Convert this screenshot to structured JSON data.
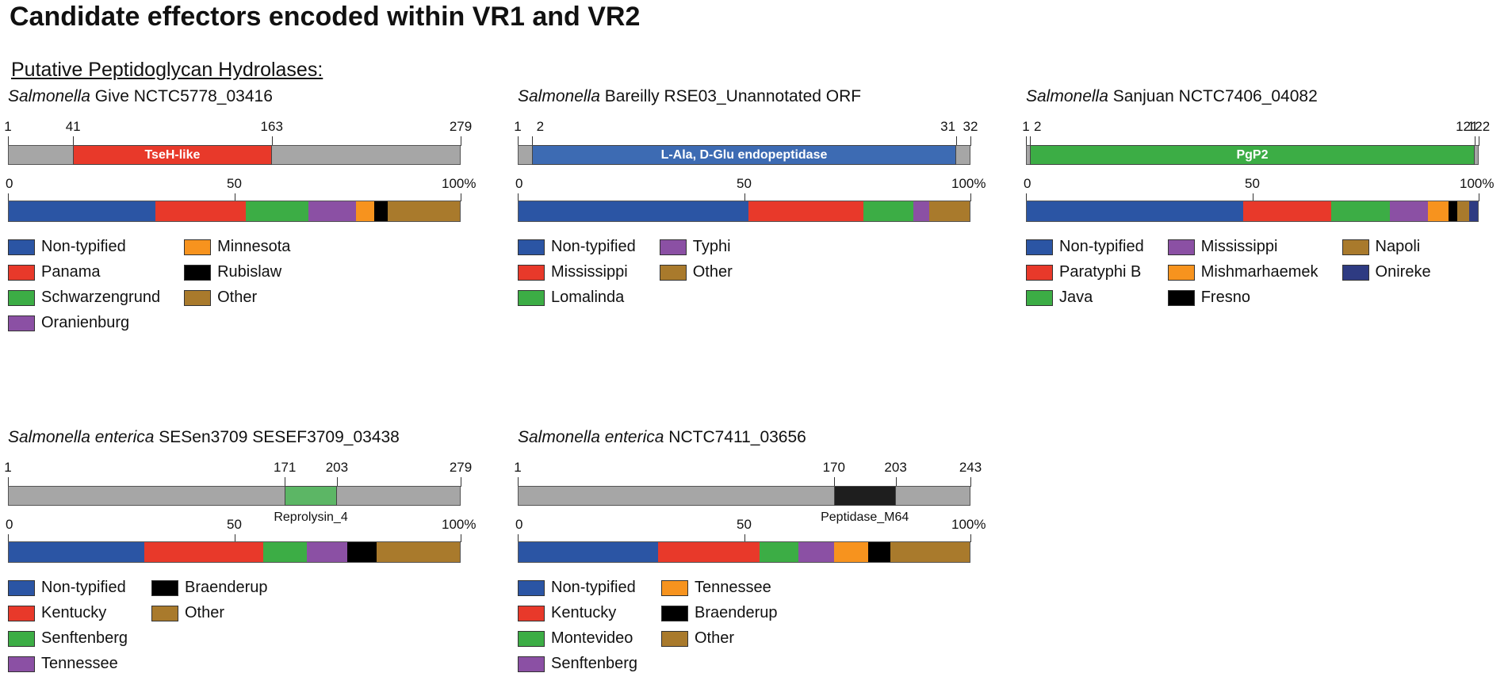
{
  "title": "Candidate effectors encoded within VR1 and VR2",
  "subtitle": "Putative Peptidoglycan Hydrolases:",
  "scale_labels": [
    "0",
    "50",
    "100%"
  ],
  "panels": [
    {
      "genus": "Salmonella",
      "name": "Give NCTC5778_03416",
      "length": 279,
      "positions": [
        {
          "label": "1",
          "value": 1
        },
        {
          "label": "41",
          "value": 41
        },
        {
          "label": "163",
          "value": 163
        },
        {
          "label": "279",
          "value": 279
        }
      ],
      "domain": {
        "label": "TseH-like",
        "start": 41,
        "end": 163,
        "color": "#e8392a",
        "label_inside": true
      },
      "composition": [
        {
          "name": "Non-typified",
          "value": 32.5,
          "color": "#2b55a4"
        },
        {
          "name": "Panama",
          "value": 20,
          "color": "#e8392a"
        },
        {
          "name": "Schwarzengrund",
          "value": 14,
          "color": "#3cad45"
        },
        {
          "name": "Oranienburg",
          "value": 10.5,
          "color": "#8b50a4"
        },
        {
          "name": "Minnesota",
          "value": 4,
          "color": "#f7931e"
        },
        {
          "name": "Rubislaw",
          "value": 3,
          "color": "#000000"
        },
        {
          "name": "Other",
          "value": 16,
          "color": "#a97a2c"
        }
      ],
      "legend_columns": [
        4,
        3
      ]
    },
    {
      "genus": "Salmonella",
      "name": "Bareilly RSE03_Unannotated ORF",
      "length": 32,
      "positions": [
        {
          "label": "1",
          "value": 1
        },
        {
          "label": "2",
          "value": 2
        },
        {
          "label": "31",
          "value": 31
        },
        {
          "label": "32",
          "value": 32
        }
      ],
      "domain": {
        "label": "L-Ala, D-Glu endopeptidase",
        "start": 2,
        "end": 31,
        "color": "#3d6bb3",
        "label_inside": true
      },
      "composition": [
        {
          "name": "Non-typified",
          "value": 51,
          "color": "#2b55a4"
        },
        {
          "name": "Mississippi",
          "value": 25.5,
          "color": "#e8392a"
        },
        {
          "name": "Lomalinda",
          "value": 11,
          "color": "#3cad45"
        },
        {
          "name": "Typhi",
          "value": 3.5,
          "color": "#8b50a4"
        },
        {
          "name": "Other",
          "value": 9,
          "color": "#a97a2c"
        }
      ],
      "legend_columns": [
        3,
        2
      ]
    },
    {
      "genus": "Salmonella",
      "name": "Sanjuan NCTC7406_04082",
      "length": 122,
      "positions": [
        {
          "label": "1",
          "value": 1
        },
        {
          "label": "2",
          "value": 2
        },
        {
          "label": "121",
          "value": 121
        },
        {
          "label": "122",
          "value": 122
        }
      ],
      "domain": {
        "label": "PgP2",
        "start": 2,
        "end": 121,
        "color": "#3cad45",
        "label_inside": true
      },
      "composition": [
        {
          "name": "Non-typified",
          "value": 48,
          "color": "#2b55a4"
        },
        {
          "name": "Paratyphi B",
          "value": 19.5,
          "color": "#e8392a"
        },
        {
          "name": "Java",
          "value": 13,
          "color": "#3cad45"
        },
        {
          "name": "Mississippi",
          "value": 8.5,
          "color": "#8b50a4"
        },
        {
          "name": "Mishmarhaemek",
          "value": 4.5,
          "color": "#f7931e"
        },
        {
          "name": "Fresno",
          "value": 2,
          "color": "#000000"
        },
        {
          "name": "Napoli",
          "value": 2.5,
          "color": "#a97a2c"
        },
        {
          "name": "Onireke",
          "value": 2,
          "color": "#2e3b82"
        }
      ],
      "legend_columns": [
        3,
        3,
        2
      ]
    },
    {
      "genus": "Salmonella enterica",
      "name": "SESen3709 SESEF3709_03438",
      "length": 279,
      "positions": [
        {
          "label": "1",
          "value": 1
        },
        {
          "label": "171",
          "value": 171
        },
        {
          "label": "203",
          "value": 203
        },
        {
          "label": "279",
          "value": 279
        }
      ],
      "domain": {
        "label": "Reprolysin_4",
        "start": 171,
        "end": 203,
        "color": "#5cb665",
        "label_inside": false
      },
      "composition": [
        {
          "name": "Non-typified",
          "value": 30,
          "color": "#2b55a4"
        },
        {
          "name": "Kentucky",
          "value": 26.5,
          "color": "#e8392a"
        },
        {
          "name": "Senftenberg",
          "value": 9.5,
          "color": "#3cad45"
        },
        {
          "name": "Tennessee",
          "value": 9,
          "color": "#8b50a4"
        },
        {
          "name": "Braenderup",
          "value": 6.5,
          "color": "#000000"
        },
        {
          "name": "Other",
          "value": 18.5,
          "color": "#a97a2c"
        }
      ],
      "legend_columns": [
        4,
        2
      ]
    },
    {
      "genus": "Salmonella enterica",
      "name": "NCTC7411_03656",
      "length": 243,
      "positions": [
        {
          "label": "1",
          "value": 1
        },
        {
          "label": "170",
          "value": 170
        },
        {
          "label": "203",
          "value": 203
        },
        {
          "label": "243",
          "value": 243
        }
      ],
      "domain": {
        "label": "Peptidase_M64",
        "start": 170,
        "end": 203,
        "color": "#1e1e1e",
        "label_inside": false
      },
      "composition": [
        {
          "name": "Non-typified",
          "value": 31,
          "color": "#2b55a4"
        },
        {
          "name": "Kentucky",
          "value": 22.5,
          "color": "#e8392a"
        },
        {
          "name": "Montevideo",
          "value": 8.5,
          "color": "#3cad45"
        },
        {
          "name": "Senftenberg",
          "value": 8,
          "color": "#8b50a4"
        },
        {
          "name": "Tennessee",
          "value": 7.5,
          "color": "#f7931e"
        },
        {
          "name": "Braenderup",
          "value": 5,
          "color": "#000000"
        },
        {
          "name": "Other",
          "value": 17.5,
          "color": "#a97a2c"
        }
      ],
      "legend_columns": [
        4,
        3
      ]
    }
  ]
}
